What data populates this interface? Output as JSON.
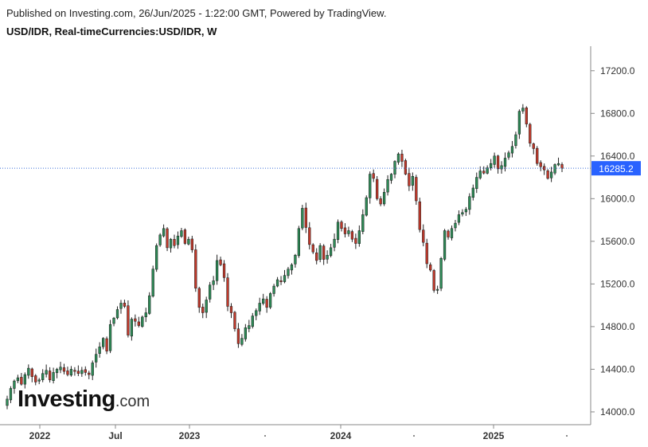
{
  "header": {
    "published": "Published on Investing.com, 26/Jun/2025 - 1:22:00 GMT, Powered by TradingView.",
    "symbol": "USD/IDR, Real-timeCurrencies:USD/IDR, W"
  },
  "logo": {
    "main": "Investing",
    "suffix": ".com"
  },
  "colors": {
    "up": "#2e8b57",
    "down": "#c0392b",
    "wick": "#222222",
    "price_line": "#3b6fd8",
    "price_tag_bg": "#2962ff"
  },
  "chart_data": {
    "type": "candlestick",
    "title": "USD/IDR, Real-timeCurrencies:USD/IDR, W",
    "ylim": [
      13880,
      17430
    ],
    "y_ticks": [
      "17200.0",
      "16800.0",
      "16400.0",
      "16000.0",
      "15600.0",
      "15200.0",
      "14800.0",
      "14400.0",
      "14000.0"
    ],
    "x_tick_labels": [
      "2022",
      "Jul",
      "2023",
      "",
      "2024",
      "",
      "2025",
      ""
    ],
    "current_price": 16285.2,
    "current_price_label": "16285.2",
    "closes": [
      14120,
      14220,
      14290,
      14320,
      14260,
      14350,
      14410,
      14330,
      14280,
      14300,
      14360,
      14390,
      14300,
      14370,
      14400,
      14420,
      14380,
      14350,
      14400,
      14380,
      14360,
      14390,
      14370,
      14350,
      14460,
      14540,
      14610,
      14690,
      14570,
      14820,
      14880,
      14960,
      15020,
      14990,
      14720,
      14870,
      14850,
      14810,
      14890,
      14930,
      15090,
      15340,
      15560,
      15660,
      15720,
      15540,
      15620,
      15560,
      15650,
      15700,
      15580,
      15620,
      15520,
      15160,
      14980,
      14930,
      15050,
      15190,
      15230,
      15420,
      15380,
      15260,
      14990,
      14930,
      14780,
      14640,
      14690,
      14790,
      14810,
      14900,
      14950,
      15020,
      15060,
      14980,
      15110,
      15180,
      15240,
      15220,
      15280,
      15340,
      15380,
      15470,
      15720,
      15910,
      15730,
      15570,
      15500,
      15420,
      15560,
      15430,
      15470,
      15540,
      15620,
      15780,
      15720,
      15670,
      15700,
      15620,
      15580,
      15700,
      15850,
      16010,
      16230,
      16190,
      16000,
      15950,
      16060,
      16180,
      16230,
      16350,
      16420,
      16350,
      16230,
      16120,
      16210,
      15980,
      15710,
      15590,
      15390,
      15330,
      15140,
      15150,
      15440,
      15700,
      15640,
      15720,
      15770,
      15850,
      15870,
      15900,
      16020,
      16100,
      16200,
      16260,
      16240,
      16290,
      16330,
      16400,
      16280,
      16310,
      16380,
      16430,
      16490,
      16600,
      16820,
      16850,
      16700,
      16520,
      16470,
      16330,
      16300,
      16270,
      16190,
      16250,
      16320,
      16330,
      16285
    ]
  }
}
